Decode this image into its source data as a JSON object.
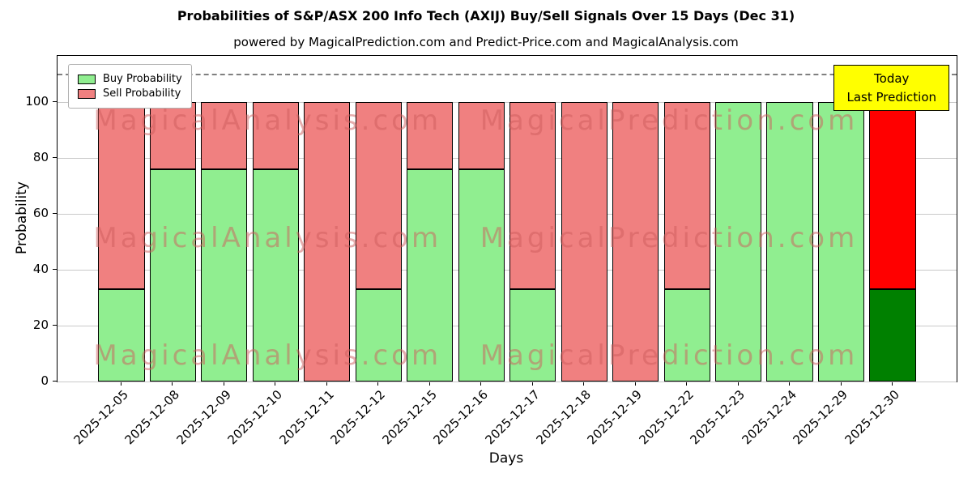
{
  "title": "Probabilities of S&P/ASX 200 Info Tech (AXIJ) Buy/Sell Signals Over 15 Days (Dec 31)",
  "subtitle": "powered by MagicalPrediction.com and Predict-Price.com and MagicalAnalysis.com",
  "watermarks": {
    "left": "MagicalAnalysis.com",
    "right": "MagicalPrediction.com"
  },
  "annotation": {
    "line1": "Today",
    "line2": "Last Prediction",
    "background": "#ffff00"
  },
  "legend": [
    {
      "label": "Buy Probability",
      "color": "#90ee90"
    },
    {
      "label": "Sell Probability",
      "color": "#f08080"
    }
  ],
  "chart_data": {
    "type": "bar",
    "stacked": true,
    "title": "Probabilities of S&P/ASX 200 Info Tech (AXIJ) Buy/Sell Signals Over 15 Days (Dec 31)",
    "xlabel": "Days",
    "ylabel": "Probability",
    "categories": [
      "2025-12-05",
      "2025-12-08",
      "2025-12-09",
      "2025-12-10",
      "2025-12-11",
      "2025-12-12",
      "2025-12-15",
      "2025-12-16",
      "2025-12-17",
      "2025-12-18",
      "2025-12-19",
      "2025-12-22",
      "2025-12-23",
      "2025-12-24",
      "2025-12-29",
      "2025-12-30"
    ],
    "series": [
      {
        "name": "Buy Probability",
        "color": "#90ee90",
        "values": [
          33,
          76,
          76,
          76,
          0,
          33,
          76,
          76,
          33,
          0,
          0,
          33,
          100,
          100,
          100,
          33
        ]
      },
      {
        "name": "Sell Probability",
        "color": "#f08080",
        "values": [
          67,
          24,
          24,
          24,
          100,
          67,
          24,
          24,
          67,
          100,
          100,
          67,
          0,
          0,
          0,
          67
        ]
      }
    ],
    "final_bar_colors": {
      "buy": "#008000",
      "sell": "#ff0000"
    },
    "yticks": [
      0,
      20,
      40,
      60,
      80,
      100
    ],
    "ylim": [
      0,
      116.5
    ],
    "dashed_line_y": 110,
    "grid": true,
    "legend_position": "upper left",
    "bar_edge_color": "#000000"
  }
}
